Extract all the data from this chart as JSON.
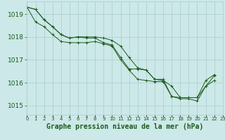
{
  "xlabel": "Graphe pression niveau de la mer (hPa)",
  "hours": [
    0,
    1,
    2,
    3,
    4,
    5,
    6,
    7,
    8,
    9,
    10,
    11,
    12,
    13,
    14,
    15,
    16,
    17,
    18,
    19,
    20,
    21,
    22,
    23
  ],
  "line1": [
    1019.3,
    1019.2,
    1018.75,
    1018.45,
    1018.1,
    1017.95,
    1018.0,
    1017.95,
    1017.95,
    1017.75,
    1017.65,
    1017.1,
    1016.6,
    1016.6,
    1016.55,
    1016.15,
    1016.15,
    1015.4,
    1015.35,
    1015.35,
    1015.35,
    1015.85,
    1016.1,
    null
  ],
  "line2": [
    1019.3,
    1019.2,
    1018.75,
    1018.45,
    1018.1,
    1017.95,
    1018.0,
    1018.0,
    1018.0,
    1017.95,
    1017.85,
    1017.6,
    1017.1,
    1016.65,
    1016.55,
    1016.15,
    1016.1,
    1015.85,
    1015.35,
    1015.35,
    1015.35,
    1016.1,
    1016.35,
    null
  ],
  "line3": [
    1019.3,
    1018.65,
    1018.45,
    1018.1,
    1017.8,
    1017.75,
    1017.75,
    1017.75,
    1017.8,
    1017.7,
    1017.6,
    1017.0,
    1016.55,
    1016.15,
    1016.1,
    1016.05,
    1016.05,
    1015.4,
    1015.3,
    1015.3,
    1015.2,
    1015.85,
    1016.3,
    null
  ],
  "line_color": "#1a5c1a",
  "bg_color": "#cce8e8",
  "grid_color": "#aacccc",
  "text_color": "#1a5c1a",
  "ylabel_ticks": [
    1015,
    1016,
    1017,
    1018,
    1019
  ],
  "ylim": [
    1014.6,
    1019.55
  ],
  "xlim": [
    0,
    23
  ],
  "label_fontsize": 6.5,
  "xlabel_fontsize": 7
}
